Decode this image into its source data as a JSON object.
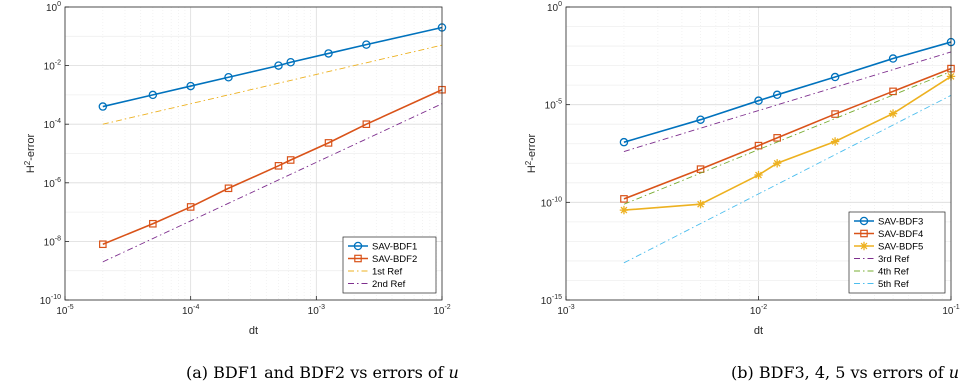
{
  "chart_data": [
    {
      "type": "line",
      "xscale": "log",
      "yscale": "log",
      "xlim": [
        1e-05,
        0.01
      ],
      "ylim": [
        1e-10,
        1
      ],
      "grid": true,
      "xlabel": "dt",
      "ylabel": "H^2-error",
      "legend_position": "bottom-right",
      "caption": "(a) BDF1 and BDF2 vs errors of u",
      "xticks": [
        {
          "base": "10",
          "exp": "-5",
          "value": 1e-05
        },
        {
          "base": "10",
          "exp": "-4",
          "value": 0.0001
        },
        {
          "base": "10",
          "exp": "-3",
          "value": 0.001
        },
        {
          "base": "10",
          "exp": "-2",
          "value": 0.01
        }
      ],
      "yticks": [
        {
          "base": "10",
          "exp": "-10",
          "value": 1e-10
        },
        {
          "base": "10",
          "exp": "-8",
          "value": 1e-08
        },
        {
          "base": "10",
          "exp": "-6",
          "value": 1e-06
        },
        {
          "base": "10",
          "exp": "-4",
          "value": 0.0001
        },
        {
          "base": "10",
          "exp": "-2",
          "value": 0.01
        },
        {
          "base": "10",
          "exp": "0",
          "value": 1
        }
      ],
      "series": [
        {
          "name": "SAV-BDF1",
          "color": "#0072BD",
          "style": "solid",
          "marker": "circle",
          "x": [
            2e-05,
            5e-05,
            0.0001,
            0.0002,
            0.0005,
            0.000625,
            0.00125,
            0.0025,
            0.01
          ],
          "y": [
            0.0004,
            0.001,
            0.002,
            0.004,
            0.01,
            0.013,
            0.026,
            0.052,
            0.2
          ]
        },
        {
          "name": "SAV-BDF2",
          "color": "#D95319",
          "style": "solid",
          "marker": "square",
          "x": [
            2e-05,
            5e-05,
            0.0001,
            0.0002,
            0.0005,
            0.000625,
            0.00125,
            0.0025,
            0.01
          ],
          "y": [
            8e-09,
            4e-08,
            1.5e-07,
            6.5e-07,
            3.8e-06,
            6e-06,
            2.3e-05,
            0.0001,
            0.0015
          ]
        },
        {
          "name": "1st Ref",
          "color": "#EDB120",
          "style": "dashdot",
          "marker": "none",
          "x": [
            2e-05,
            0.01
          ],
          "y": [
            0.0001,
            0.05
          ]
        },
        {
          "name": "2nd Ref",
          "color": "#7E2F8E",
          "style": "dashdot",
          "marker": "none",
          "x": [
            2e-05,
            0.01
          ],
          "y": [
            2e-09,
            0.0005
          ]
        }
      ]
    },
    {
      "type": "line",
      "xscale": "log",
      "yscale": "log",
      "xlim": [
        0.001,
        0.1
      ],
      "ylim": [
        1e-15,
        1
      ],
      "grid": true,
      "xlabel": "dt",
      "ylabel": "H^2-error",
      "legend_position": "bottom-right",
      "caption": "(b) BDF3, 4, 5 vs errors of u",
      "xticks": [
        {
          "base": "10",
          "exp": "-3",
          "value": 0.001
        },
        {
          "base": "10",
          "exp": "-2",
          "value": 0.01
        },
        {
          "base": "10",
          "exp": "-1",
          "value": 0.1
        }
      ],
      "yticks": [
        {
          "base": "10",
          "exp": "-15",
          "value": 1e-15
        },
        {
          "base": "10",
          "exp": "-10",
          "value": 1e-10
        },
        {
          "base": "10",
          "exp": "-5",
          "value": 1e-05
        },
        {
          "base": "10",
          "exp": "0",
          "value": 1
        }
      ],
      "series": [
        {
          "name": "SAV-BDF3",
          "color": "#0072BD",
          "style": "solid",
          "marker": "circle",
          "x": [
            0.002,
            0.005,
            0.01,
            0.0125,
            0.025,
            0.05,
            0.1
          ],
          "y": [
            1.2e-07,
            1.7e-06,
            1.6e-05,
            3.2e-05,
            0.00026,
            0.0023,
            0.016
          ]
        },
        {
          "name": "SAV-BDF4",
          "color": "#D95319",
          "style": "solid",
          "marker": "square",
          "x": [
            0.002,
            0.005,
            0.01,
            0.0125,
            0.025,
            0.05,
            0.1
          ],
          "y": [
            1.5e-10,
            5e-09,
            8e-08,
            2e-07,
            3.3e-06,
            4.8e-05,
            0.0007
          ]
        },
        {
          "name": "SAV-BDF5",
          "color": "#EDB120",
          "style": "solid",
          "marker": "star",
          "x": [
            0.002,
            0.005,
            0.01,
            0.0125,
            0.025,
            0.05,
            0.1
          ],
          "y": [
            4e-11,
            8e-11,
            2.5e-09,
            1e-08,
            1.3e-07,
            3.5e-06,
            0.00028
          ]
        },
        {
          "name": "3rd Ref",
          "color": "#7E2F8E",
          "style": "dashdot",
          "marker": "none",
          "x": [
            0.002,
            0.1
          ],
          "y": [
            4e-08,
            0.005
          ]
        },
        {
          "name": "4th Ref",
          "color": "#77AC30",
          "style": "dashdot",
          "marker": "none",
          "x": [
            0.002,
            0.1
          ],
          "y": [
            8e-11,
            0.0005
          ]
        },
        {
          "name": "5th Ref",
          "color": "#4DBEEE",
          "style": "dashdot",
          "marker": "none",
          "x": [
            0.002,
            0.1
          ],
          "y": [
            8e-14,
            3e-05
          ]
        }
      ]
    }
  ]
}
